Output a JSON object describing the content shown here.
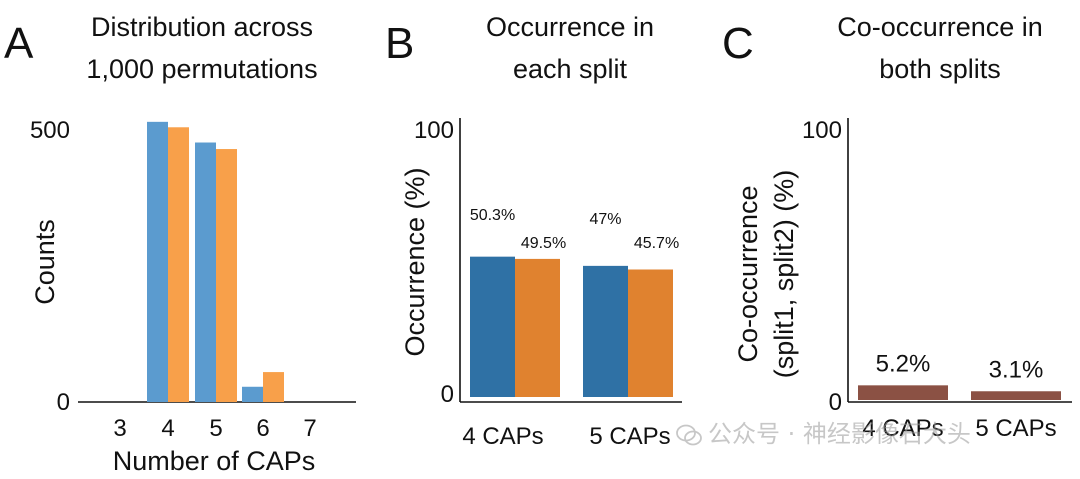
{
  "panels": {
    "A": {
      "letter": "A",
      "title_line1": "Distribution across",
      "title_line2": "1,000 permutations"
    },
    "B": {
      "letter": "B",
      "title_line1": "Occurrence in",
      "title_line2": "each split"
    },
    "C": {
      "letter": "C",
      "title_line1": "Co-occurrence in",
      "title_line2": "both splits"
    }
  },
  "colors": {
    "a_series1": "#5b9bcf",
    "a_series2": "#f8a04a",
    "b_series1": "#2f71a5",
    "b_series2": "#e0822f",
    "c_series": "#8b5144"
  },
  "watermark": {
    "text": "公众号 · 神经影像石大头",
    "icon": "wechat-icon"
  },
  "chart_data": [
    {
      "panel": "A",
      "type": "bar",
      "title": "Distribution across 1,000 permutations",
      "xlabel": "Number of CAPs",
      "ylabel": "Counts",
      "categories": [
        "3",
        "4",
        "5",
        "6",
        "7"
      ],
      "series": [
        {
          "values": [
            0,
            515,
            477,
            28,
            0
          ]
        },
        {
          "values": [
            0,
            505,
            465,
            55,
            0
          ]
        }
      ],
      "yticks": [
        "0",
        "500"
      ],
      "ylim": [
        0,
        520
      ]
    },
    {
      "panel": "B",
      "type": "bar",
      "title": "Occurrence in each split",
      "xlabel": "",
      "ylabel": "Occurrence (%)",
      "categories": [
        "4 CAPs",
        "5 CAPs"
      ],
      "series": [
        {
          "values": [
            50.3,
            47
          ],
          "labels": [
            "50.3%",
            "47%"
          ]
        },
        {
          "values": [
            49.5,
            45.7
          ],
          "labels": [
            "49.5%",
            "45.7%"
          ]
        }
      ],
      "yticks": [
        "0",
        "100"
      ],
      "ylim": [
        0,
        100
      ]
    },
    {
      "panel": "C",
      "type": "bar",
      "title": "Co-occurrence in both splits",
      "xlabel": "",
      "ylabel_line1": "Co-occurrence",
      "ylabel_line2": "(split1, split2) (%)",
      "categories": [
        "4 CAPs",
        "5 CAPs"
      ],
      "series": [
        {
          "values": [
            5.2,
            3.1
          ],
          "labels": [
            "5.2%",
            "3.1%"
          ]
        }
      ],
      "yticks": [
        "0",
        "100"
      ],
      "ylim": [
        0,
        100
      ]
    }
  ]
}
